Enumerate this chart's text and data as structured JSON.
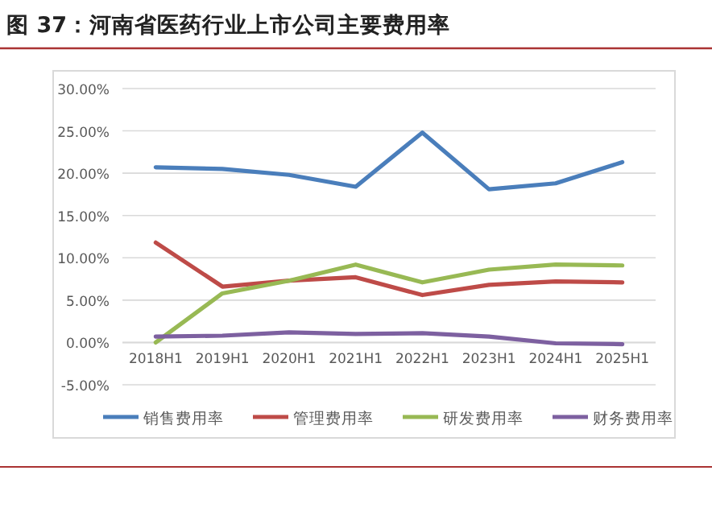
{
  "chart_data": {
    "type": "line",
    "title": "图 37：河南省医药行业上市公司主要费用率",
    "categories": [
      "2018H1",
      "2019H1",
      "2020H1",
      "2021H1",
      "2022H1",
      "2023H1",
      "2024H1",
      "2025H1"
    ],
    "series": [
      {
        "name": "销售费用率",
        "color": "#4a7ebb",
        "values": [
          20.7,
          20.5,
          19.8,
          18.4,
          24.8,
          18.1,
          18.8,
          21.3
        ]
      },
      {
        "name": "管理费用率",
        "color": "#be4b48",
        "values": [
          11.8,
          6.6,
          7.3,
          7.7,
          5.6,
          6.8,
          7.2,
          7.1
        ]
      },
      {
        "name": "研发费用率",
        "color": "#98b954",
        "values": [
          0,
          5.8,
          7.3,
          9.2,
          7.1,
          8.6,
          9.2,
          9.1
        ]
      },
      {
        "name": "财务费用率",
        "color": "#7d60a0",
        "values": [
          0.7,
          0.8,
          1.2,
          1.0,
          1.1,
          0.7,
          -0.1,
          -0.2
        ]
      }
    ],
    "ylim": [
      -5,
      30
    ],
    "yticks": [
      {
        "value": -5,
        "label": "-5.00%"
      },
      {
        "value": 0,
        "label": "0.00%"
      },
      {
        "value": 5,
        "label": "5.00%"
      },
      {
        "value": 10,
        "label": "10.00%"
      },
      {
        "value": 15,
        "label": "15.00%"
      },
      {
        "value": 20,
        "label": "20.00%"
      },
      {
        "value": 25,
        "label": "25.00%"
      },
      {
        "value": 30,
        "label": "30.00%"
      }
    ],
    "grid": "y",
    "legend": "bottom",
    "marker": "none",
    "line_style": "solid"
  }
}
